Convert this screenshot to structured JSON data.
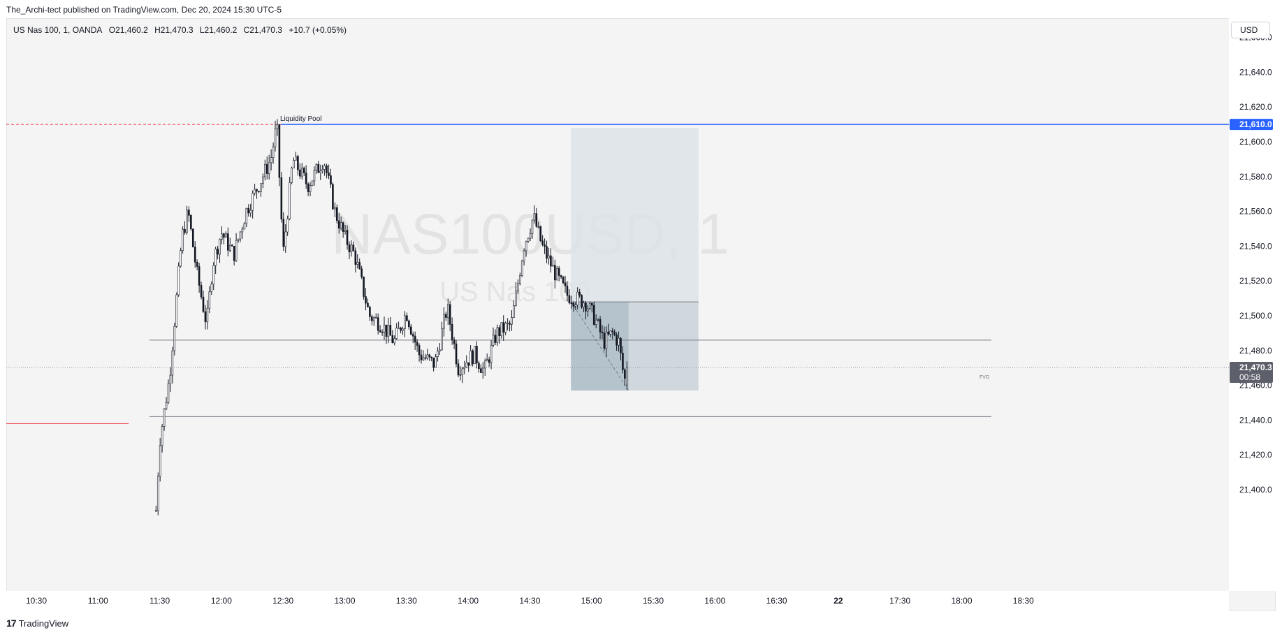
{
  "header": {
    "published": "The_Archi-tect published on TradingView.com, Dec 20, 2024 15:30 UTC-5"
  },
  "legend": {
    "symbol": "US Nas 100, 1, OANDA",
    "open": "O21,460.2",
    "high": "H21,470.3",
    "low": "L21,460.2",
    "close": "C21,470.3",
    "change": "+10.7 (+0.05%)"
  },
  "currency_button": "USD",
  "footer": {
    "logo": "17",
    "brand": "TradingView"
  },
  "watermark": {
    "main": "NAS100USD, 1",
    "sub": "US Nas 100"
  },
  "colors": {
    "background": "#f4f4f4",
    "candle": "#131722",
    "liquidity_line": "#2962ff",
    "red_dashed": "#f23645",
    "level_line": "#787b86",
    "box_light": "#dde3e7",
    "box_dark": "#a8bac4",
    "label_bg": "#5d606b"
  },
  "chart_data": {
    "type": "candlestick",
    "title": "US Nas 100, 1, OANDA",
    "ylim": [
      21390,
      21670
    ],
    "y_ticks": [
      "21,400.0",
      "21,420.0",
      "21,440.0",
      "21,460.0",
      "21,480.0",
      "21,500.0",
      "21,520.0",
      "21,540.0",
      "21,560.0",
      "21,580.0",
      "21,600.0",
      "21,620.0",
      "21,640.0",
      "21,660.0"
    ],
    "x_ticks": [
      "10:30",
      "11:00",
      "11:30",
      "12:00",
      "12:30",
      "13:00",
      "13:30",
      "14:00",
      "14:30",
      "15:00",
      "15:30",
      "16:00",
      "16:30",
      "22",
      "17:30",
      "18:00",
      "18:30"
    ],
    "price_path": [
      [
        11.47,
        21388
      ],
      [
        11.5,
        21428
      ],
      [
        11.58,
        21465
      ],
      [
        11.63,
        21505
      ],
      [
        11.68,
        21545
      ],
      [
        11.73,
        21560
      ],
      [
        11.8,
        21525
      ],
      [
        11.88,
        21495
      ],
      [
        11.93,
        21530
      ],
      [
        12.0,
        21548
      ],
      [
        12.1,
        21535
      ],
      [
        12.2,
        21560
      ],
      [
        12.3,
        21575
      ],
      [
        12.4,
        21590
      ],
      [
        12.45,
        21610
      ],
      [
        12.5,
        21535
      ],
      [
        12.58,
        21590
      ],
      [
        12.7,
        21575
      ],
      [
        12.83,
        21590
      ],
      [
        12.92,
        21560
      ],
      [
        13.0,
        21545
      ],
      [
        13.08,
        21535
      ],
      [
        13.2,
        21500
      ],
      [
        13.3,
        21495
      ],
      [
        13.4,
        21485
      ],
      [
        13.5,
        21502
      ],
      [
        13.6,
        21478
      ],
      [
        13.73,
        21472
      ],
      [
        13.83,
        21505
      ],
      [
        13.92,
        21470
      ],
      [
        14.05,
        21478
      ],
      [
        14.13,
        21468
      ],
      [
        14.23,
        21490
      ],
      [
        14.35,
        21495
      ],
      [
        14.45,
        21540
      ],
      [
        14.53,
        21557
      ],
      [
        14.6,
        21540
      ],
      [
        14.7,
        21525
      ],
      [
        14.8,
        21512
      ],
      [
        14.87,
        21510
      ],
      [
        14.95,
        21508
      ],
      [
        15.03,
        21498
      ],
      [
        15.1,
        21485
      ],
      [
        15.17,
        21490
      ],
      [
        15.22,
        21485
      ],
      [
        15.25,
        21470
      ],
      [
        15.28,
        21460
      ],
      [
        15.3,
        21470
      ]
    ],
    "last_candle": {
      "open": 21460.2,
      "high": 21470.3,
      "low": 21460.2,
      "close": 21470.3
    },
    "annotations": {
      "liquidity_pool": {
        "label": "Liquidity Pool",
        "price": 21610.0,
        "price_label": "21,610.0"
      },
      "horizontal_levels": [
        21486.0,
        21442.0
      ],
      "red_level": 21438.0,
      "fvg_label": "FVG",
      "position_box": {
        "entry": 21508.0,
        "target": 21457.0,
        "stop": 21608.0,
        "start_time": "14:50",
        "end_time": "15:52"
      },
      "current_price_label": "21,470.3",
      "countdown": "00:58"
    }
  }
}
